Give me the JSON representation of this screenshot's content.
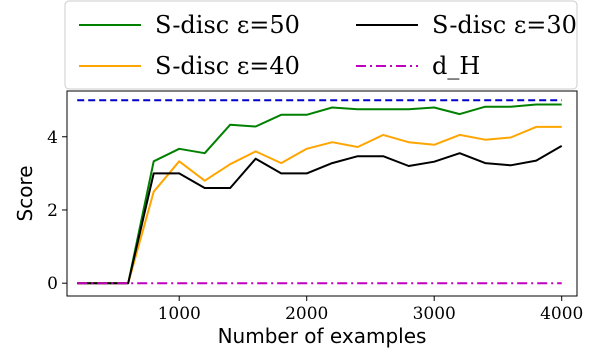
{
  "chart_data": {
    "type": "line",
    "xlabel": "Number of examples",
    "ylabel": "Score",
    "xlim": [
      120,
      4120
    ],
    "ylim": [
      -0.35,
      5.25
    ],
    "xticks": [
      1000,
      2000,
      3000,
      4000
    ],
    "yticks": [
      0,
      2,
      4
    ],
    "xtick_labels": [
      "1000",
      "2000",
      "3000",
      "4000"
    ],
    "ytick_labels": [
      "0",
      "2",
      "4"
    ],
    "grid": false,
    "legend_position": "top",
    "x": [
      200,
      400,
      600,
      800,
      1000,
      1200,
      1400,
      1600,
      1800,
      2000,
      2200,
      2400,
      2600,
      2800,
      3000,
      3200,
      3400,
      3600,
      3800,
      4000
    ],
    "series": [
      {
        "name": "S-disc ε=50",
        "color": "#008000",
        "dash": "solid",
        "values": [
          0,
          0,
          0,
          3.33,
          3.67,
          3.55,
          4.33,
          4.28,
          4.6,
          4.6,
          4.8,
          4.75,
          4.75,
          4.75,
          4.8,
          4.62,
          4.82,
          4.82,
          4.88,
          4.88
        ]
      },
      {
        "name": "S-disc ε=40",
        "color": "#FFA500",
        "dash": "solid",
        "values": [
          0,
          0,
          0,
          2.5,
          3.33,
          2.8,
          3.25,
          3.6,
          3.28,
          3.67,
          3.85,
          3.72,
          4.05,
          3.85,
          3.78,
          4.05,
          3.92,
          3.98,
          4.27,
          4.27
        ]
      },
      {
        "name": "S-disc ε=30",
        "color": "#000000",
        "dash": "solid",
        "values": [
          0,
          0,
          0,
          3.0,
          3.0,
          2.6,
          2.6,
          3.4,
          3.0,
          3.0,
          3.28,
          3.47,
          3.47,
          3.2,
          3.32,
          3.55,
          3.28,
          3.22,
          3.35,
          3.75
        ]
      },
      {
        "name": "d_H",
        "color": "#BF00BF",
        "dash": "dashdot",
        "values": [
          0,
          0,
          0,
          0,
          0,
          0,
          0,
          0,
          0,
          0,
          0,
          0,
          0,
          0,
          0,
          0,
          0,
          0,
          0,
          0
        ]
      },
      {
        "name": "",
        "color": "#0000CC",
        "dash": "dashed",
        "values": [
          5,
          5,
          5,
          5,
          5,
          5,
          5,
          5,
          5,
          5,
          5,
          5,
          5,
          5,
          5,
          5,
          5,
          5,
          5,
          5
        ]
      }
    ],
    "legend": [
      {
        "label": "S-disc ε=50",
        "color": "#008000",
        "dash": "solid"
      },
      {
        "label": "S-disc ε=30",
        "color": "#000000",
        "dash": "solid"
      },
      {
        "label": "S-disc ε=40",
        "color": "#FFA500",
        "dash": "solid"
      },
      {
        "label": "d_H",
        "color": "#BF00BF",
        "dash": "dashdot"
      }
    ]
  }
}
